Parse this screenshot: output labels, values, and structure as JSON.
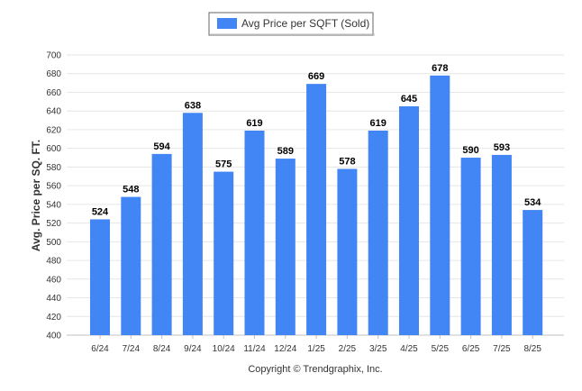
{
  "chart_data": {
    "type": "bar",
    "title": "",
    "xlabel": "",
    "ylabel": "Avg. Price per SQ. FT.",
    "ylim": [
      400,
      700
    ],
    "yticks": [
      400,
      420,
      440,
      460,
      480,
      500,
      520,
      540,
      560,
      580,
      600,
      620,
      640,
      660,
      680,
      700
    ],
    "categories": [
      "6/24",
      "7/24",
      "8/24",
      "9/24",
      "10/24",
      "11/24",
      "12/24",
      "1/25",
      "2/25",
      "3/25",
      "4/25",
      "5/25",
      "6/25",
      "7/25",
      "8/25"
    ],
    "series": [
      {
        "name": "Avg Price per SQFT (Sold)",
        "values": [
          524,
          548,
          594,
          638,
          575,
          619,
          589,
          669,
          578,
          619,
          645,
          678,
          590,
          593,
          534
        ],
        "color": "#4285f4"
      }
    ],
    "grid": true,
    "legend": "top-center",
    "data_labels": true
  },
  "footer": {
    "copyright": "Copyright © Trendgraphix, Inc."
  }
}
